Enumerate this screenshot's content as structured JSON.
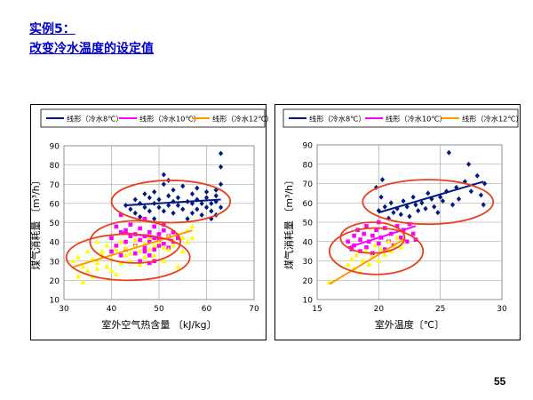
{
  "slide": {
    "title_line1": "实例5：",
    "title_line2": "改变冷水温度的设定值",
    "page_number": "55"
  },
  "colors": {
    "title": "#0000cc",
    "blue": "#001a80",
    "magenta": "#ff00ff",
    "yellow": "#ffff00",
    "orange": "#ff9900",
    "ellipse": "#e8401c",
    "grid": "#9a9a9a"
  },
  "chart_data": [
    {
      "type": "scatter",
      "xlabel": "室外空气热含量 〔kJ/kg〕",
      "ylabel": "煤气消耗量 〔m³/h〕",
      "xlim": [
        30,
        70
      ],
      "ylim": [
        10,
        90
      ],
      "x_ticks": [
        "30",
        "40",
        "50",
        "60",
        "70"
      ],
      "y_ticks": [
        "10",
        "20",
        "30",
        "40",
        "50",
        "60",
        "70",
        "80",
        "90"
      ],
      "grid": true,
      "legend": "top",
      "legend_labels": [
        "线形（冷水8℃）",
        "线形（冷水10℃）",
        "线形（冷水12℃）"
      ],
      "series": [
        {
          "color": "blue",
          "marker": "diamond",
          "points": [
            [
              43,
              59
            ],
            [
              44,
              57
            ],
            [
              45,
              55
            ],
            [
              45,
              62
            ],
            [
              46,
              60
            ],
            [
              46,
              53
            ],
            [
              47,
              58
            ],
            [
              47,
              65
            ],
            [
              48,
              63
            ],
            [
              48,
              56
            ],
            [
              49,
              52
            ],
            [
              49,
              60
            ],
            [
              49,
              66
            ],
            [
              50,
              58
            ],
            [
              50,
              62
            ],
            [
              51,
              70
            ],
            [
              51,
              56
            ],
            [
              51,
              75
            ],
            [
              52,
              64
            ],
            [
              52,
              59
            ],
            [
              52,
              72
            ],
            [
              53,
              61
            ],
            [
              53,
              55
            ],
            [
              53,
              67
            ],
            [
              54,
              59
            ],
            [
              54,
              63
            ],
            [
              55,
              57
            ],
            [
              55,
              69
            ],
            [
              56,
              52
            ],
            [
              56,
              61
            ],
            [
              57,
              60
            ],
            [
              57,
              65
            ],
            [
              57,
              55
            ],
            [
              58,
              62
            ],
            [
              58,
              68
            ],
            [
              58,
              57
            ],
            [
              59,
              60
            ],
            [
              59,
              54
            ],
            [
              60,
              63
            ],
            [
              60,
              58
            ],
            [
              60,
              66
            ],
            [
              61,
              60
            ],
            [
              61,
              52
            ],
            [
              61,
              56
            ],
            [
              62,
              64
            ],
            [
              62,
              54
            ],
            [
              62,
              61
            ],
            [
              63,
              58
            ],
            [
              63,
              70
            ],
            [
              63,
              86
            ],
            [
              63,
              79
            ],
            [
              62,
              67
            ]
          ],
          "fit": [
            [
              43,
              59
            ],
            [
              63,
              62
            ]
          ]
        },
        {
          "color": "magenta",
          "marker": "square",
          "points": [
            [
              40,
              42
            ],
            [
              40,
              35
            ],
            [
              41,
              48
            ],
            [
              41,
              38
            ],
            [
              42,
              45
            ],
            [
              42,
              54
            ],
            [
              42,
              33
            ],
            [
              43,
              40
            ],
            [
              43,
              46
            ],
            [
              43,
              36
            ],
            [
              44,
              43
            ],
            [
              44,
              49
            ],
            [
              45,
              38
            ],
            [
              45,
              34
            ],
            [
              45,
              44
            ],
            [
              46,
              47
            ],
            [
              46,
              41
            ],
            [
              46,
              30
            ],
            [
              47,
              37
            ],
            [
              47,
              43
            ],
            [
              47,
              35
            ],
            [
              47,
              52
            ],
            [
              48,
              45
            ],
            [
              48,
              40
            ],
            [
              48,
              33
            ],
            [
              48,
              29
            ],
            [
              49,
              42
            ],
            [
              49,
              48
            ],
            [
              49,
              36
            ],
            [
              49,
              30
            ],
            [
              50,
              44
            ],
            [
              50,
              38
            ],
            [
              50,
              41
            ],
            [
              51,
              46
            ],
            [
              51,
              39
            ],
            [
              51,
              49
            ],
            [
              52,
              43
            ],
            [
              52,
              37
            ],
            [
              53,
              45
            ],
            [
              53,
              40
            ],
            [
              54,
              42
            ]
          ],
          "fit": [
            [
              42,
              45
            ],
            [
              53,
              41
            ]
          ]
        },
        {
          "color": "yellow",
          "marker": "triangle",
          "points": [
            [
              32,
              30
            ],
            [
              33,
              22
            ],
            [
              33,
              32
            ],
            [
              34,
              19
            ],
            [
              34,
              27
            ],
            [
              35,
              35
            ],
            [
              35,
              25
            ],
            [
              36,
              22
            ],
            [
              36,
              31
            ],
            [
              37,
              29
            ],
            [
              37,
              40
            ],
            [
              37,
              26
            ],
            [
              38,
              35
            ],
            [
              38,
              33
            ],
            [
              39,
              27
            ],
            [
              39,
              38
            ],
            [
              40,
              31
            ],
            [
              40,
              25
            ],
            [
              41,
              36
            ],
            [
              41,
              23
            ],
            [
              42,
              40
            ],
            [
              42,
              29
            ],
            [
              43,
              37
            ],
            [
              43,
              33
            ],
            [
              44,
              34
            ],
            [
              44,
              30
            ],
            [
              45,
              38
            ],
            [
              45,
              41
            ],
            [
              46,
              35
            ],
            [
              46,
              28
            ],
            [
              47,
              39
            ],
            [
              47,
              32
            ],
            [
              48,
              36
            ],
            [
              48,
              42
            ],
            [
              49,
              33
            ],
            [
              49,
              38
            ],
            [
              50,
              40
            ],
            [
              51,
              37
            ],
            [
              51,
              30
            ],
            [
              52,
              36
            ],
            [
              52,
              43
            ],
            [
              53,
              38
            ],
            [
              53,
              41
            ],
            [
              54,
              27
            ],
            [
              54,
              44
            ],
            [
              55,
              42
            ],
            [
              55,
              35
            ],
            [
              56,
              46
            ],
            [
              56,
              40
            ],
            [
              57,
              42
            ],
            [
              57,
              48
            ]
          ],
          "fit": [
            [
              32,
              27
            ],
            [
              57,
              46
            ]
          ]
        }
      ],
      "ellipses": [
        [
          52.5,
          61,
          12.5,
          11
        ],
        [
          45,
          40,
          9.5,
          11
        ],
        [
          43.5,
          32,
          13,
          12
        ]
      ]
    },
    {
      "type": "scatter",
      "xlabel": "室外温度〔℃〕",
      "ylabel": "煤气消耗量 〔m³/h〕",
      "xlim": [
        15,
        30
      ],
      "ylim": [
        10,
        90
      ],
      "x_ticks": [
        "15",
        "20",
        "25",
        "30"
      ],
      "y_ticks": [
        "10",
        "20",
        "30",
        "40",
        "50",
        "60",
        "70",
        "80",
        "90"
      ],
      "grid": true,
      "legend": "top",
      "legend_labels": [
        "线形（冷水8℃）",
        "线形（冷水10℃）",
        "线形（冷水12℃）"
      ],
      "series": [
        {
          "color": "blue",
          "marker": "diamond",
          "points": [
            [
              19.8,
              68
            ],
            [
              20,
              56
            ],
            [
              20.2,
              63
            ],
            [
              20.3,
              72
            ],
            [
              20.5,
              58
            ],
            [
              20.8,
              52
            ],
            [
              21,
              60
            ],
            [
              21.2,
              55
            ],
            [
              21.5,
              57
            ],
            [
              21.8,
              54
            ],
            [
              22,
              61
            ],
            [
              22.3,
              58
            ],
            [
              22.5,
              53
            ],
            [
              22.8,
              63
            ],
            [
              23,
              59
            ],
            [
              23.2,
              56
            ],
            [
              23.5,
              60
            ],
            [
              23.8,
              57
            ],
            [
              24,
              65
            ],
            [
              24.3,
              62
            ],
            [
              24.5,
              58
            ],
            [
              24.8,
              55
            ],
            [
              25,
              63
            ],
            [
              25.2,
              61
            ],
            [
              25.5,
              66
            ],
            [
              25.7,
              86
            ],
            [
              26,
              59
            ],
            [
              26.3,
              68
            ],
            [
              26.5,
              62
            ],
            [
              27,
              71
            ],
            [
              27.3,
              80
            ],
            [
              27.5,
              66
            ],
            [
              28,
              74
            ],
            [
              28.3,
              64
            ],
            [
              28.5,
              59
            ],
            [
              28.6,
              70
            ]
          ],
          "fit": [
            [
              20,
              55
            ],
            [
              28.5,
              71
            ]
          ]
        },
        {
          "color": "magenta",
          "marker": "square",
          "points": [
            [
              17.5,
              40
            ],
            [
              17.8,
              36
            ],
            [
              18,
              43
            ],
            [
              18,
              38
            ],
            [
              18.3,
              46
            ],
            [
              18.5,
              35
            ],
            [
              18.5,
              41
            ],
            [
              18.8,
              44
            ],
            [
              19,
              37
            ],
            [
              19,
              48
            ],
            [
              19.2,
              40
            ],
            [
              19.5,
              34
            ],
            [
              19.5,
              43
            ],
            [
              19.8,
              46
            ],
            [
              20,
              39
            ],
            [
              20,
              50
            ],
            [
              20.2,
              42
            ],
            [
              20.5,
              36
            ],
            [
              20.5,
              47
            ],
            [
              20.8,
              40
            ],
            [
              21,
              44
            ],
            [
              21.2,
              38
            ],
            [
              21.5,
              48
            ],
            [
              21.8,
              42
            ],
            [
              22,
              46
            ],
            [
              22.3,
              40
            ],
            [
              22.5,
              49
            ],
            [
              22.8,
              44
            ],
            [
              23,
              41
            ]
          ],
          "fit": [
            [
              17.5,
              37
            ],
            [
              23,
              48
            ]
          ]
        },
        {
          "color": "yellow",
          "marker": "triangle",
          "points": [
            [
              16,
              19
            ],
            [
              17.5,
              28
            ],
            [
              17.8,
              31
            ],
            [
              18,
              26
            ],
            [
              18.2,
              33
            ],
            [
              18.5,
              24
            ],
            [
              18.7,
              30
            ],
            [
              19,
              35
            ],
            [
              19.2,
              28
            ],
            [
              19.5,
              32
            ],
            [
              19.7,
              38
            ],
            [
              20,
              30
            ],
            [
              20.2,
              36
            ],
            [
              20.5,
              33
            ],
            [
              20.8,
              40
            ],
            [
              21,
              35
            ],
            [
              21.3,
              38
            ],
            [
              21.5,
              42
            ],
            [
              21.8,
              37
            ],
            [
              22,
              40
            ]
          ],
          "fit": [
            [
              16,
              18
            ],
            [
              22,
              41
            ]
          ]
        }
      ],
      "ellipses": [
        [
          24,
          60.5,
          5.3,
          11.5
        ],
        [
          19.8,
          35,
          3.8,
          12
        ],
        [
          19.5,
          42,
          2.6,
          8
        ]
      ]
    }
  ]
}
